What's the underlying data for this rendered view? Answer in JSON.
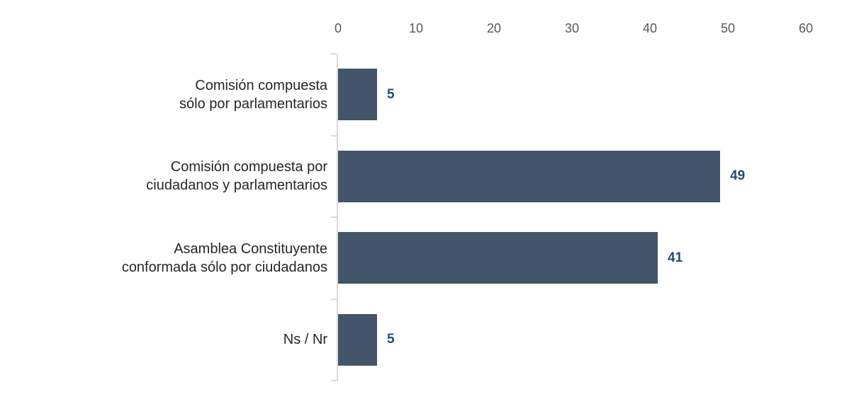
{
  "chart_data": {
    "type": "bar",
    "orientation": "horizontal",
    "title": "",
    "xlabel": "",
    "ylabel": "",
    "categories": [
      "Comisión compuesta sólo por parlamentarios",
      "Comisión compuesta por ciudadanos y parlamentarios",
      "Asamblea Constituyente conformada sólo por ciudadanos",
      "Ns / Nr"
    ],
    "category_label_lines": [
      [
        "Comisión compuesta",
        "sólo por parlamentarios"
      ],
      [
        "Comisión compuesta por",
        "ciudadanos y parlamentarios"
      ],
      [
        "Asamblea Constituyente",
        "conformada sólo por ciudadanos"
      ],
      [
        "Ns / Nr"
      ]
    ],
    "values": [
      5,
      49,
      41,
      5
    ],
    "x_ticks": [
      0,
      10,
      20,
      30,
      40,
      50,
      60
    ],
    "xlim": [
      0,
      60
    ],
    "grid": false,
    "legend": false,
    "axis_position": "top",
    "colors": {
      "bar": "#44546a",
      "value_label": "#1f4e79",
      "tick_label": "#595959",
      "category_label": "#262626",
      "axis_line": "#d9d9d9",
      "background": "#ffffff"
    }
  }
}
